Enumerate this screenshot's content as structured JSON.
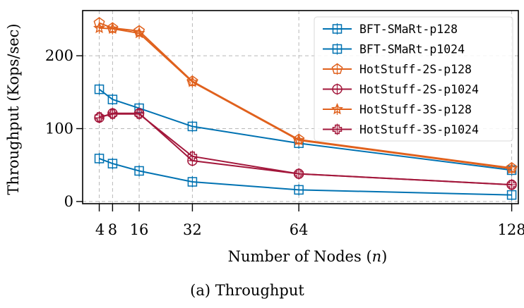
{
  "chart_data": {
    "type": "line",
    "title": "",
    "caption": "(a) Throughput",
    "xlabel": "Number of Nodes (n)",
    "xlabel_parts": {
      "prefix": "Number of Nodes (",
      "var": "n",
      "suffix": ")"
    },
    "ylabel": "Throughput (Kops/sec)",
    "x": [
      4,
      8,
      16,
      32,
      64,
      128
    ],
    "xticks": [
      4,
      8,
      16,
      32,
      64,
      128
    ],
    "xtick_labels": [
      "4",
      "8",
      "16",
      "32",
      "64",
      "128"
    ],
    "yticks": [
      0,
      100,
      200
    ],
    "ytick_labels": [
      "0",
      "100",
      "200"
    ],
    "xlim": [
      -1,
      130
    ],
    "ylim": [
      -3,
      262
    ],
    "grid": true,
    "legend_position": "top-right",
    "series": [
      {
        "name": "BFT-SMaRt-p128",
        "color": "#0072B2",
        "marker": "square",
        "values": [
          154,
          140,
          128,
          103,
          80,
          43
        ]
      },
      {
        "name": "BFT-SMaRt-p1024",
        "color": "#0072B2",
        "marker": "square",
        "values": [
          59,
          52,
          42,
          27,
          16,
          9
        ]
      },
      {
        "name": "HotStuff-2S-p128",
        "color": "#E0611D",
        "marker": "pentagon",
        "values": [
          245,
          238,
          234,
          165,
          85,
          46
        ]
      },
      {
        "name": "HotStuff-2S-p1024",
        "color": "#A3173B",
        "marker": "circle",
        "values": [
          115,
          121,
          121,
          56,
          38,
          23
        ]
      },
      {
        "name": "HotStuff-3S-p128",
        "color": "#E0611D",
        "marker": "star",
        "values": [
          238,
          237,
          231,
          164,
          84,
          45
        ]
      },
      {
        "name": "HotStuff-3S-p1024",
        "color": "#A3173B",
        "marker": "plus",
        "values": [
          116,
          120,
          120,
          62,
          38,
          23
        ]
      }
    ]
  }
}
